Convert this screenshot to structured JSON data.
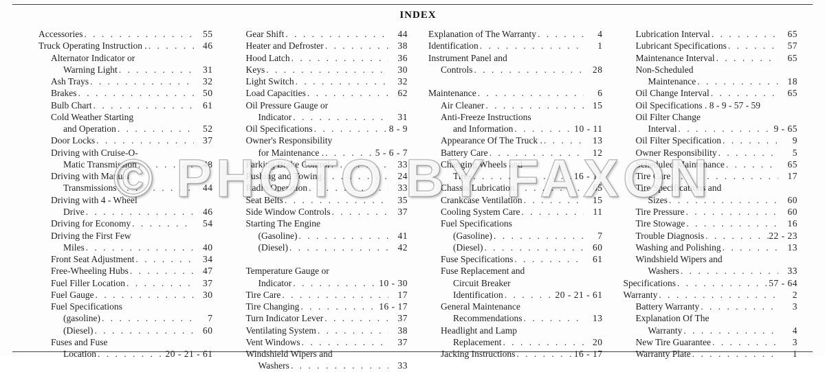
{
  "title": "INDEX",
  "watermark": "© PHOTO BY FAXON",
  "columns": [
    [
      {
        "label": "Accessories",
        "page": "55",
        "indent": 0
      },
      {
        "label": "Truck Operating Instruction .",
        "page": "46",
        "indent": 0
      },
      {
        "label": "Alternator Indicator or",
        "indent": 1,
        "nopage": true
      },
      {
        "label": "Warning Light",
        "page": "31",
        "indent": 2
      },
      {
        "label": "Ash Trays",
        "page": "32",
        "indent": 1
      },
      {
        "label": "Brakes",
        "page": "50",
        "indent": 1
      },
      {
        "label": "Bulb Chart",
        "page": "61",
        "indent": 1
      },
      {
        "label": "Cold Weather Starting",
        "indent": 1,
        "nopage": true
      },
      {
        "label": "and Operation",
        "page": "52",
        "indent": 2
      },
      {
        "label": "Door Locks",
        "page": "37",
        "indent": 1
      },
      {
        "label": "Driving with Cruise-O-",
        "indent": 1,
        "nopage": true
      },
      {
        "label": "Matic Transmission",
        "page": "48",
        "indent": 2
      },
      {
        "label": "Driving with Manual",
        "indent": 1,
        "nopage": true
      },
      {
        "label": "Transmissions",
        "page": "44",
        "indent": 2
      },
      {
        "label": "Driving with 4 - Wheel",
        "indent": 1,
        "nopage": true
      },
      {
        "label": "Drive",
        "page": "46",
        "indent": 2
      },
      {
        "label": "Driving for Economy",
        "page": "54",
        "indent": 1
      },
      {
        "label": "Driving the First Few",
        "indent": 1,
        "nopage": true
      },
      {
        "label": "Miles",
        "page": "40",
        "indent": 2
      },
      {
        "label": "Front Seat Adjustment",
        "page": "34",
        "indent": 1
      },
      {
        "label": "Free-Wheeling Hubs",
        "page": "47",
        "indent": 1
      },
      {
        "label": "Fuel Filler Location",
        "page": "37",
        "indent": 1
      },
      {
        "label": "Fuel Gauge",
        "page": "30",
        "indent": 1
      },
      {
        "label": "Fuel Specifications",
        "indent": 1,
        "nopage": true
      },
      {
        "label": "(gasoline)",
        "page": "7",
        "indent": 2
      },
      {
        "label": "(Diesel)",
        "page": "60",
        "indent": 2
      },
      {
        "label": "Fuses and Fuse",
        "indent": 1,
        "nopage": true
      },
      {
        "label": "Location",
        "page": "20 - 21 - 61",
        "indent": 2
      }
    ],
    [
      {
        "label": "Gear Shift",
        "page": "44",
        "indent": 1
      },
      {
        "label": "Heater and Defroster",
        "page": "38",
        "indent": 1
      },
      {
        "label": "Hood Latch",
        "page": "36",
        "indent": 1
      },
      {
        "label": "Keys",
        "page": "30",
        "indent": 1
      },
      {
        "label": "Light Switch",
        "page": "32",
        "indent": 1
      },
      {
        "label": "Load Capacities",
        "page": "62",
        "indent": 1
      },
      {
        "label": "Oil Pressure Gauge or",
        "indent": 1,
        "nopage": true
      },
      {
        "label": "Indicator",
        "page": "31",
        "indent": 2
      },
      {
        "label": "Oil Specifications",
        "page": "8 - 9",
        "indent": 1
      },
      {
        "label": "Owner's Responsibility",
        "indent": 1,
        "nopage": true
      },
      {
        "label": "for Maintenance .",
        "page": "5 - 6 - 7",
        "indent": 2
      },
      {
        "label": "Parking Brake Control",
        "page": "33",
        "indent": 1
      },
      {
        "label": "Pushing and Towing",
        "page": "24",
        "indent": 1
      },
      {
        "label": "Radio Operation",
        "page": "33",
        "indent": 1
      },
      {
        "label": "Seat Belts",
        "page": "35",
        "indent": 1
      },
      {
        "label": "Side Window Controls",
        "page": "37",
        "indent": 1
      },
      {
        "label": "Starting The Engine",
        "indent": 1,
        "nopage": true
      },
      {
        "label": "(Gasoline)",
        "page": "41",
        "indent": 2
      },
      {
        "label": "(Diesel)",
        "page": "42",
        "indent": 2
      },
      {
        "label": "",
        "indent": 1,
        "nopage": true,
        "blank": true
      },
      {
        "label": "Temperature Gauge or",
        "indent": 1,
        "nopage": true
      },
      {
        "label": "Indicator",
        "page": "10 - 30",
        "indent": 2
      },
      {
        "label": "Tire Care",
        "page": "17",
        "indent": 1
      },
      {
        "label": "Tire Changing",
        "page": "16 - 17",
        "indent": 1
      },
      {
        "label": "Turn Indicator Lever",
        "page": "37",
        "indent": 1
      },
      {
        "label": "Ventilating System",
        "page": "38",
        "indent": 1
      },
      {
        "label": "Vent Windows",
        "page": "37",
        "indent": 1
      },
      {
        "label": "Windshield Wipers and",
        "indent": 1,
        "nopage": true
      },
      {
        "label": "Washers",
        "page": "33",
        "indent": 2
      }
    ],
    [
      {
        "label": "Explanation of The Warranty",
        "page": "4",
        "indent": 0
      },
      {
        "label": "Identification",
        "page": "1",
        "indent": 0
      },
      {
        "label": "Instrument Panel and",
        "indent": 0,
        "nopage": true
      },
      {
        "label": "Controls",
        "page": "28",
        "indent": 1
      },
      {
        "label": "",
        "indent": 0,
        "nopage": true,
        "blank": true
      },
      {
        "label": "Maintenance",
        "page": "6",
        "indent": 0
      },
      {
        "label": "Air Cleaner",
        "page": "15",
        "indent": 1
      },
      {
        "label": "Anti-Freeze Instructions",
        "indent": 1,
        "nopage": true
      },
      {
        "label": "and Information",
        "page": "10 - 11",
        "indent": 2
      },
      {
        "label": "Appearance Of The Truck .",
        "page": "13",
        "indent": 1
      },
      {
        "label": "Battery Care",
        "page": "12",
        "indent": 1
      },
      {
        "label": "Changing Wheels and",
        "indent": 1,
        "nopage": true
      },
      {
        "label": "Tires",
        "page": "16 - 17",
        "indent": 2
      },
      {
        "label": "Chassis Lubrication",
        "page": "65",
        "indent": 1
      },
      {
        "label": "Crankcase Ventilation",
        "page": "15",
        "indent": 1
      },
      {
        "label": "Cooling System Care",
        "page": "11",
        "indent": 1
      },
      {
        "label": "Fuel Specifications",
        "indent": 1,
        "nopage": true
      },
      {
        "label": "(Gasoline)",
        "page": "7",
        "indent": 2
      },
      {
        "label": "(Diesel)",
        "page": "60",
        "indent": 2
      },
      {
        "label": "Fuse Specifications",
        "page": "61",
        "indent": 1
      },
      {
        "label": "Fuse Replacement and",
        "indent": 1,
        "nopage": true
      },
      {
        "label": "Circuit Breaker",
        "indent": 2,
        "nopage": true
      },
      {
        "label": "Identification",
        "page": "20 - 21 - 61",
        "indent": 2
      },
      {
        "label": "General Maintenance",
        "indent": 1,
        "nopage": true
      },
      {
        "label": "Recommendations",
        "page": "13",
        "indent": 2
      },
      {
        "label": "Headlight and Lamp",
        "indent": 1,
        "nopage": true
      },
      {
        "label": "Replacement",
        "page": "20",
        "indent": 2
      },
      {
        "label": "Jacking Instructions",
        "page": "16 - 17",
        "indent": 1
      }
    ],
    [
      {
        "label": "Lubrication Interval",
        "page": "65",
        "indent": 1
      },
      {
        "label": "Lubricant Specifications",
        "page": "57",
        "indent": 1
      },
      {
        "label": "Maintenance Interval",
        "page": "65",
        "indent": 1
      },
      {
        "label": "Non-Scheduled",
        "indent": 1,
        "nopage": true
      },
      {
        "label": "Maintenance",
        "page": "18",
        "indent": 2
      },
      {
        "label": "Oil Change Interval",
        "page": "65",
        "indent": 1
      },
      {
        "label": "Oil Specifications . 8 - 9 - 57 - 59",
        "indent": 1,
        "nopage": true,
        "tightpage": true
      },
      {
        "label": "Oil Filter Change",
        "indent": 1,
        "nopage": true
      },
      {
        "label": "Interval",
        "page": "9 - 65",
        "indent": 2
      },
      {
        "label": "Oil Filter Specification",
        "page": "9",
        "indent": 1
      },
      {
        "label": "Owner Responsibility",
        "page": "5",
        "indent": 1
      },
      {
        "label": "Scheduled Maintenance",
        "page": "65",
        "indent": 1
      },
      {
        "label": "Tire Care",
        "page": "17",
        "indent": 1
      },
      {
        "label": "Tire Specifications and",
        "indent": 1,
        "nopage": true
      },
      {
        "label": "Sizes",
        "page": "60",
        "indent": 2
      },
      {
        "label": "Tire Pressure",
        "page": "60",
        "indent": 1
      },
      {
        "label": "Tire Stowage",
        "page": "16",
        "indent": 1
      },
      {
        "label": "Trouble Diagnosis",
        "page": "22 - 23",
        "indent": 1
      },
      {
        "label": "Washing and Polishing",
        "page": "13",
        "indent": 1
      },
      {
        "label": "Windshield Wipers and",
        "indent": 1,
        "nopage": true
      },
      {
        "label": "Washers",
        "page": "33",
        "indent": 2
      },
      {
        "label": "Specifications",
        "page": "57 - 64",
        "indent": 0
      },
      {
        "label": "Warranty",
        "page": "2",
        "indent": 0
      },
      {
        "label": "Battery Warranty",
        "page": "3",
        "indent": 1
      },
      {
        "label": "Explanation Of The",
        "indent": 1,
        "nopage": true
      },
      {
        "label": "Warranty",
        "page": "4",
        "indent": 2
      },
      {
        "label": "New Tire Guarantee",
        "page": "3",
        "indent": 1
      },
      {
        "label": "Warranty Plate",
        "page": "1",
        "indent": 1
      }
    ]
  ]
}
